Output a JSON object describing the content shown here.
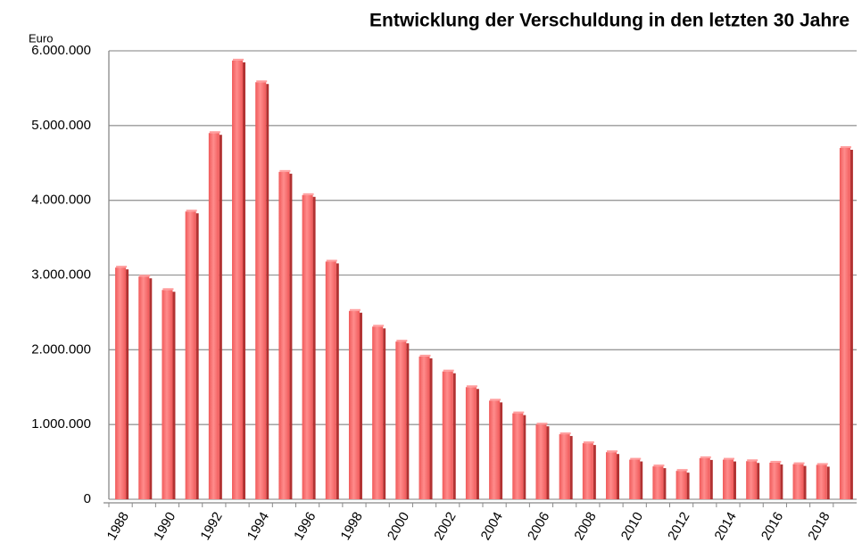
{
  "chart_data": {
    "type": "bar",
    "title": "Entwicklung der Verschuldung in den letzten 30 Jahre",
    "y_label": "Euro",
    "categories": [
      "1988",
      null,
      "1990",
      null,
      "1992",
      null,
      "1994",
      null,
      "1996",
      null,
      "1998",
      null,
      "2000",
      null,
      "2002",
      null,
      "2004",
      null,
      "2006",
      null,
      "2008",
      null,
      "2010",
      null,
      "2012",
      null,
      "2014",
      null,
      "2016",
      null,
      "2018",
      null
    ],
    "values": [
      3100000,
      2980000,
      2800000,
      3850000,
      4900000,
      5870000,
      5580000,
      4380000,
      4070000,
      3180000,
      2520000,
      2310000,
      2110000,
      1910000,
      1710000,
      1500000,
      1320000,
      1150000,
      1000000,
      870000,
      750000,
      630000,
      530000,
      440000,
      380000,
      550000,
      530000,
      510000,
      490000,
      470000,
      460000,
      4700000
    ],
    "color": "#f05a5a",
    "ylim": [
      0,
      6000000
    ],
    "yticks": [
      0,
      {
        "value": 1000000,
        "label": "1.000.000"
      },
      {
        "value": 2000000,
        "label": "2.000.000"
      },
      {
        "value": 3000000,
        "label": "3.000.000"
      },
      {
        "value": 4000000,
        "label": "4.000.000"
      },
      {
        "value": 5000000,
        "label": "5.000.000"
      },
      {
        "value": 6000000,
        "label": "6.000.000"
      }
    ],
    "grid": true
  }
}
